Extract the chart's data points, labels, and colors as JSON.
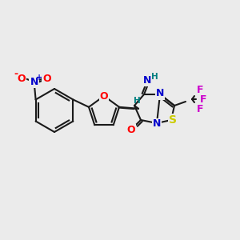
{
  "bg_color": "#ebebeb",
  "bond_color": "#1a1a1a",
  "atom_colors": {
    "N": "#0000cc",
    "O": "#ff0000",
    "S": "#cccc00",
    "F": "#cc00cc",
    "H_teal": "#008080",
    "C_black": "#1a1a1a"
  },
  "font_size_atoms": 9,
  "font_size_small": 7.5,
  "fig_size": [
    3.0,
    3.0
  ],
  "dpi": 100
}
